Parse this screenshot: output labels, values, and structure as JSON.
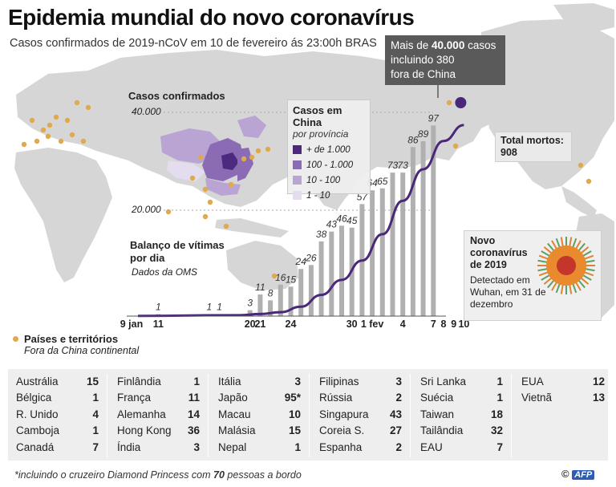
{
  "title": "Epidemia mundial do novo coronavírus",
  "subtitle": "Casos confirmados de 2019-nCoV em 10 de fevereiro ás 23:00h BRAS",
  "callout": {
    "line1_prefix": "Mais de ",
    "line1_bold": "40.000",
    "line1_suffix": " casos",
    "line2": "incluindo 380",
    "line3": "fora de China"
  },
  "china_legend": {
    "title": "Casos em China",
    "subtitle": "por província",
    "items": [
      {
        "label": "+ de 1.000",
        "color": "#4d2a80"
      },
      {
        "label": "100 - 1.000",
        "color": "#8a6bb4"
      },
      {
        "label": "10 - 100",
        "color": "#b9a4d4"
      },
      {
        "label": "1 - 10",
        "color": "#e4dcef"
      }
    ]
  },
  "deaths": {
    "label": "Total mortos:",
    "value": "908"
  },
  "virus_box": {
    "title": "Novo coronavírus de 2019",
    "text": "Detectado em Wuhan, em 31 de dezembro"
  },
  "cases_label": "Casos confirmados",
  "deaths_label_line1": "Balanço de vítimas",
  "deaths_label_line2": "por dia",
  "deaths_source": "Dados da OMS",
  "countries_legend": {
    "title": "Países e territórios",
    "subtitle": "Fora da China continental"
  },
  "colors": {
    "curve": "#4a2779",
    "bar": "#b0b0b0",
    "map": "#d6d6d6",
    "dot": "#e1a94e",
    "callout_bg": "#5a5a5a"
  },
  "chart_data": {
    "type": "bar",
    "title": "Balanço de vítimas por dia",
    "x_day_labels": [
      "9 jan",
      "11",
      "20",
      "21",
      "24",
      "30",
      "1 fev",
      "4",
      "7",
      "8",
      "9",
      "10"
    ],
    "y_tick_labels": [
      "20.000",
      "40.000"
    ],
    "ylim_cases": [
      0,
      45000
    ],
    "deaths_bars": [
      {
        "day": "2020-01-11",
        "value": 1
      },
      {
        "day": "2020-01-16",
        "value": 1
      },
      {
        "day": "2020-01-17",
        "value": 1
      },
      {
        "day": "2020-01-20",
        "value": 3
      },
      {
        "day": "2020-01-21",
        "value": 11
      },
      {
        "day": "2020-01-22",
        "value": 8
      },
      {
        "day": "2020-01-23",
        "value": 16
      },
      {
        "day": "2020-01-24",
        "value": 15
      },
      {
        "day": "2020-01-25",
        "value": 24
      },
      {
        "day": "2020-01-26",
        "value": 26
      },
      {
        "day": "2020-01-27",
        "value": 38
      },
      {
        "day": "2020-01-28",
        "value": 43
      },
      {
        "day": "2020-01-29",
        "value": 46
      },
      {
        "day": "2020-01-30",
        "value": 45
      },
      {
        "day": "2020-01-31",
        "value": 57
      },
      {
        "day": "2020-02-01",
        "value": 64
      },
      {
        "day": "2020-02-02",
        "value": 65
      },
      {
        "day": "2020-02-03",
        "value": 73
      },
      {
        "day": "2020-02-04",
        "value": 73
      },
      {
        "day": "2020-02-05",
        "value": 86
      },
      {
        "day": "2020-02-06",
        "value": 89
      },
      {
        "day": "2020-02-07",
        "value": 97
      }
    ],
    "cases_curve": [
      {
        "day": "2020-01-09",
        "value": 41
      },
      {
        "day": "2020-01-19",
        "value": 200
      },
      {
        "day": "2020-01-21",
        "value": 440
      },
      {
        "day": "2020-01-23",
        "value": 830
      },
      {
        "day": "2020-01-25",
        "value": 2000
      },
      {
        "day": "2020-01-27",
        "value": 4500
      },
      {
        "day": "2020-01-29",
        "value": 7700
      },
      {
        "day": "2020-01-31",
        "value": 11800
      },
      {
        "day": "2020-02-02",
        "value": 17400
      },
      {
        "day": "2020-02-04",
        "value": 24500
      },
      {
        "day": "2020-02-06",
        "value": 31200
      },
      {
        "day": "2020-02-08",
        "value": 37200
      },
      {
        "day": "2020-02-10",
        "value": 40600
      }
    ],
    "total_deaths": 908
  },
  "countries": [
    [
      [
        "Austrália",
        "15"
      ],
      [
        "Bélgica",
        "1"
      ],
      [
        "R. Unido",
        "4"
      ],
      [
        "Camboja",
        "1"
      ],
      [
        "Canadá",
        "7"
      ]
    ],
    [
      [
        "Finlândia",
        "1"
      ],
      [
        "França",
        "11"
      ],
      [
        "Alemanha",
        "14"
      ],
      [
        "Hong Kong",
        "36"
      ],
      [
        "Índia",
        "3"
      ]
    ],
    [
      [
        "Itália",
        "3"
      ],
      [
        "Japão",
        "95*"
      ],
      [
        "Macau",
        "10"
      ],
      [
        "Malásia",
        "15"
      ],
      [
        "Nepal",
        "1"
      ]
    ],
    [
      [
        "Filipinas",
        "3"
      ],
      [
        "Rússia",
        "2"
      ],
      [
        "Singapura",
        "43"
      ],
      [
        "Coreia S.",
        "27"
      ],
      [
        "Espanha",
        "2"
      ]
    ],
    [
      [
        "Sri Lanka",
        "1"
      ],
      [
        "Suécia",
        "1"
      ],
      [
        "Taiwan",
        "18"
      ],
      [
        "Tailândia",
        "32"
      ],
      [
        "EAU",
        "7"
      ]
    ],
    [
      [
        "EUA",
        "12"
      ],
      [
        "Vietnã",
        "13"
      ]
    ]
  ],
  "footnote": {
    "prefix": "*incluindo o cruzeiro Diamond Princess com ",
    "bold": "70",
    "suffix": " pessoas a bordo"
  },
  "credit": {
    "copyright": "©",
    "agency": "AFP"
  }
}
